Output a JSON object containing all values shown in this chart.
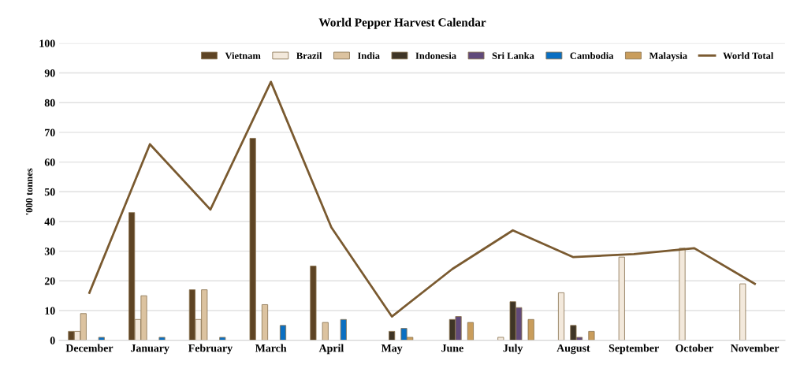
{
  "chart_data": {
    "type": "bar",
    "title": "World Pepper Harvest Calendar",
    "ylabel": "'000 tonnes",
    "categories": [
      "December",
      "January",
      "February",
      "March",
      "April",
      "May",
      "June",
      "July",
      "August",
      "September",
      "October",
      "November"
    ],
    "series": [
      {
        "name": "Vietnam",
        "color": "#5e4424",
        "values": [
          3,
          43,
          17,
          68,
          25,
          null,
          null,
          null,
          null,
          null,
          null,
          null
        ]
      },
      {
        "name": "Brazil",
        "color": "#f3e9dc",
        "values": [
          3,
          7,
          7,
          null,
          null,
          null,
          null,
          1,
          16,
          28,
          31,
          19
        ]
      },
      {
        "name": "India",
        "color": "#dcc3a0",
        "values": [
          9,
          15,
          17,
          12,
          6,
          null,
          null,
          null,
          null,
          null,
          null,
          null
        ]
      },
      {
        "name": "Indonesia",
        "color": "#3f3526",
        "values": [
          null,
          null,
          null,
          null,
          null,
          3,
          7,
          13,
          5,
          null,
          null,
          null
        ]
      },
      {
        "name": "Sri Lanka",
        "color": "#614a7a",
        "values": [
          null,
          null,
          null,
          null,
          null,
          null,
          8,
          11,
          1,
          null,
          null,
          null
        ]
      },
      {
        "name": "Cambodia",
        "color": "#0a6fc2",
        "values": [
          1,
          1,
          1,
          5,
          7,
          4,
          null,
          null,
          null,
          null,
          null,
          null
        ]
      },
      {
        "name": "Malaysia",
        "color": "#c99d5c",
        "values": [
          null,
          null,
          null,
          null,
          null,
          1,
          6,
          7,
          3,
          null,
          null,
          null
        ]
      },
      {
        "name": "World Total",
        "type": "line",
        "color": "#7a5a30",
        "values": [
          16,
          66,
          44,
          87,
          38,
          8,
          24,
          37,
          28,
          29,
          31,
          19
        ]
      }
    ],
    "ylim": [
      0,
      100
    ],
    "yticks": [
      0,
      10,
      20,
      30,
      40,
      50,
      60,
      70,
      80,
      90,
      100
    ],
    "grid": "y",
    "legend": "top"
  }
}
